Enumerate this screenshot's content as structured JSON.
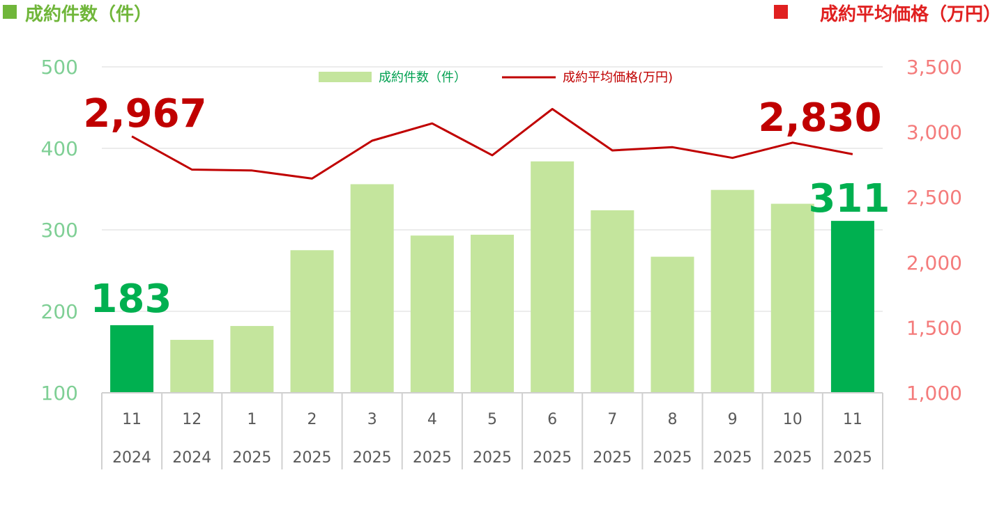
{
  "header": {
    "left_title": "成約件数（件）",
    "right_title": "成約平均価格（万円）"
  },
  "colors": {
    "bar_default": "#c4e59d",
    "bar_highlight": "#00b050",
    "line": "#c00000",
    "left_axis": "#7fcf95",
    "right_axis": "#f47b7b",
    "left_header": "#70b63a",
    "right_header": "#e02020",
    "grid": "#e6e6e6",
    "callout_count": "#00b050",
    "callout_price": "#c00000",
    "legend_bar_text": "#00a050",
    "legend_line_text": "#c00000"
  },
  "chart_data": {
    "type": "bar",
    "categories": [
      {
        "month": "11",
        "year": "2024"
      },
      {
        "month": "12",
        "year": "2024"
      },
      {
        "month": "1",
        "year": "2025"
      },
      {
        "month": "2",
        "year": "2025"
      },
      {
        "month": "3",
        "year": "2025"
      },
      {
        "month": "4",
        "year": "2025"
      },
      {
        "month": "5",
        "year": "2025"
      },
      {
        "month": "6",
        "year": "2025"
      },
      {
        "month": "7",
        "year": "2025"
      },
      {
        "month": "8",
        "year": "2025"
      },
      {
        "month": "9",
        "year": "2025"
      },
      {
        "month": "10",
        "year": "2025"
      },
      {
        "month": "11",
        "year": "2025"
      }
    ],
    "series": [
      {
        "name": "成約件数（件）",
        "type": "bar",
        "axis": "left",
        "values": [
          183,
          165,
          182,
          275,
          356,
          293,
          294,
          384,
          324,
          267,
          349,
          332,
          311
        ],
        "highlight": [
          0,
          12
        ]
      },
      {
        "name": "成約平均価格(万円)",
        "type": "line",
        "axis": "right",
        "values": [
          2967,
          2712,
          2705,
          2643,
          2934,
          3066,
          2822,
          3177,
          2859,
          2884,
          2802,
          2919,
          2830
        ]
      }
    ],
    "left_axis": {
      "min": 100,
      "max": 500,
      "ticks": [
        "100",
        "200",
        "300",
        "400",
        "500"
      ]
    },
    "right_axis": {
      "min": 1000,
      "max": 3500,
      "ticks": [
        "1,000",
        "1,500",
        "2,000",
        "2,500",
        "3,000",
        "3,500"
      ]
    },
    "grid": true,
    "legend_position": "top-center",
    "annotations": {
      "count_first": "183",
      "count_last": "311",
      "price_first": "2,967",
      "price_last": "2,830"
    }
  }
}
